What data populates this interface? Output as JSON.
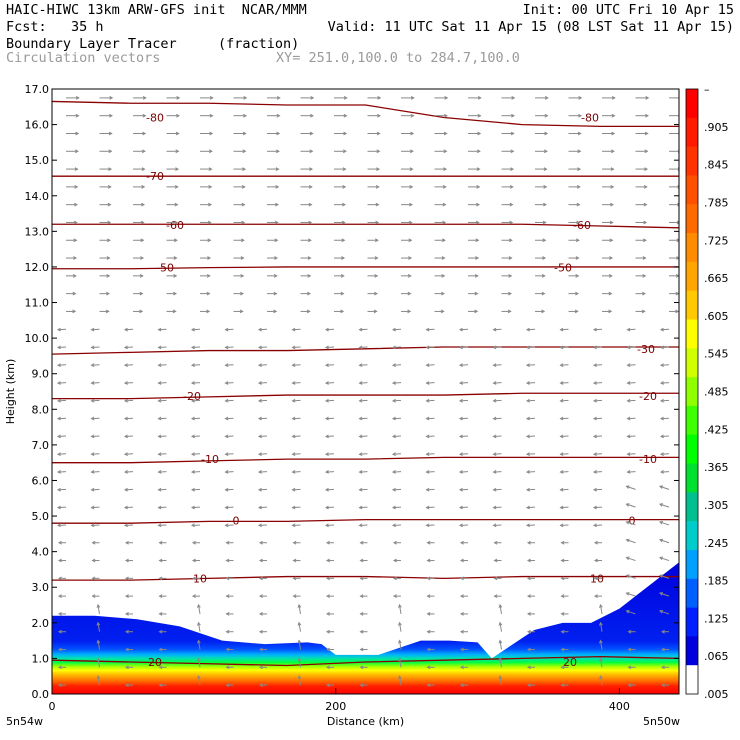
{
  "header": {
    "title_left": "HAIC-HIWC 13km ARW-GFS init  NCAR/MMM",
    "init": "Init: 00 UTC Fri 10 Apr 15",
    "fcst": "Fcst:   35 h",
    "valid": "Valid: 11 UTC Sat 11 Apr 15 (08 LST Sat 11 Apr 15)",
    "field": "Boundary Layer Tracer",
    "units": "(fraction)",
    "vectors": "Circulation vectors",
    "xy": "XY= 251.0,100.0 to 284.7,100.0"
  },
  "chart_data": {
    "type": "heatmap",
    "xlabel": "Distance (km)",
    "ylabel": "Height (km)",
    "xlim": [
      0,
      442
    ],
    "ylim": [
      0,
      17
    ],
    "x_ticks": [
      "0",
      "200",
      "400"
    ],
    "x_tick_values": [
      0,
      200,
      400
    ],
    "x_end_labels": [
      "5n54w",
      "5n50w"
    ],
    "y_ticks": [
      "0.0",
      "1.0",
      "2.0",
      "3.0",
      "4.0",
      "5.0",
      "6.0",
      "7.0",
      "8.0",
      "9.0",
      "10.0",
      "11.0",
      "12.0",
      "13.0",
      "14.0",
      "15.0",
      "16.0",
      "17.0"
    ],
    "colorbar": {
      "labels": [
        "–",
        ".905",
        ".845",
        ".785",
        ".725",
        ".665",
        ".605",
        ".545",
        ".485",
        ".425",
        ".365",
        ".305",
        ".245",
        ".185",
        ".125",
        ".065",
        ".005"
      ],
      "colors": [
        "#ff0000",
        "#ff1a00",
        "#ff3300",
        "#ff5000",
        "#ff6a00",
        "#ff8c00",
        "#ffa500",
        "#ffc800",
        "#ffff00",
        "#d0ff00",
        "#90ff00",
        "#40ff00",
        "#00ff00",
        "#00e030",
        "#00c090",
        "#00cccc",
        "#00a0ff",
        "#0060ff",
        "#0020ff",
        "#0000dd",
        "#ffffff"
      ]
    },
    "isotherms": [
      {
        "label": "20",
        "z": [
          0.95,
          0.9,
          0.85,
          0.8,
          0.9,
          0.95,
          1.0,
          1.05,
          1.0
        ],
        "label_x": [
          155,
          570
        ],
        "label_z": 0.9
      },
      {
        "label": "10",
        "z": [
          3.2,
          3.2,
          3.25,
          3.3,
          3.3,
          3.25,
          3.3,
          3.3,
          3.3
        ],
        "label_x": [
          200,
          597
        ],
        "label_z": 3.25
      },
      {
        "label": "0",
        "z": [
          4.8,
          4.8,
          4.85,
          4.85,
          4.9,
          4.9,
          4.9,
          4.9,
          4.9
        ],
        "label_x": [
          236,
          632
        ],
        "label_z": 4.87
      },
      {
        "label": "-10",
        "z": [
          6.5,
          6.5,
          6.55,
          6.6,
          6.6,
          6.65,
          6.65,
          6.65,
          6.65
        ],
        "label_x": [
          210,
          648
        ],
        "label_z": 6.6
      },
      {
        "label": "-20",
        "z": [
          8.3,
          8.3,
          8.35,
          8.4,
          8.4,
          8.4,
          8.45,
          8.45,
          8.45
        ],
        "label_x": [
          192,
          648
        ],
        "label_z": 8.38
      },
      {
        "label": "-30",
        "z": [
          9.55,
          9.6,
          9.65,
          9.65,
          9.7,
          9.75,
          9.75,
          9.75,
          9.75
        ],
        "label_x": [
          646
        ],
        "label_z": 9.7
      },
      {
        "label": "-50",
        "z": [
          11.95,
          11.95,
          11.98,
          12.0,
          12.0,
          12.0,
          12.0,
          12.0,
          12.0
        ],
        "label_x": [
          165,
          563
        ],
        "label_z": 11.98
      },
      {
        "label": "-60",
        "z": [
          13.2,
          13.2,
          13.2,
          13.2,
          13.2,
          13.2,
          13.2,
          13.15,
          13.1
        ],
        "label_x": [
          175,
          582
        ],
        "label_z": 13.18
      },
      {
        "label": "-70",
        "z": [
          14.55,
          14.55,
          14.55,
          14.55,
          14.55,
          14.55,
          14.55,
          14.55,
          14.55
        ],
        "label_x": [
          155
        ],
        "label_z": 14.55
      },
      {
        "label": "-80",
        "z": [
          16.65,
          16.6,
          16.6,
          16.55,
          16.55,
          16.2,
          16.0,
          15.95,
          15.95
        ],
        "label_x": [
          155,
          590
        ],
        "label_z": 16.2
      }
    ],
    "tracer_top_km": [
      2.2,
      2.2,
      2.1,
      1.9,
      1.5,
      1.4,
      1.45,
      1.4,
      1.1,
      1.1,
      1.5,
      1.5,
      1.45,
      1.0,
      1.8,
      2.0,
      2.0,
      2.4,
      3.7
    ],
    "tracer_top_x_km": [
      0,
      30,
      60,
      90,
      120,
      150,
      180,
      190,
      200,
      230,
      260,
      280,
      300,
      310,
      340,
      360,
      380,
      400,
      442
    ]
  }
}
